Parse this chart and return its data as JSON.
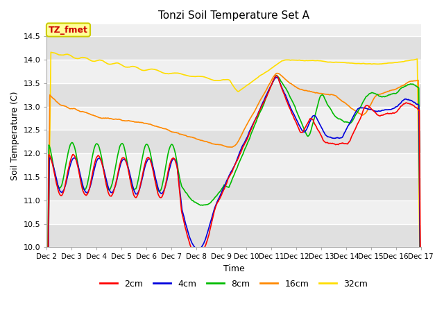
{
  "title": "Tonzi Soil Temperature Set A",
  "xlabel": "Time",
  "ylabel": "Soil Temperature (C)",
  "ylim": [
    10.0,
    14.75
  ],
  "yticks": [
    10.0,
    10.5,
    11.0,
    11.5,
    12.0,
    12.5,
    13.0,
    13.5,
    14.0,
    14.5
  ],
  "x_labels": [
    "Dec 2",
    "Dec 3",
    "Dec 4",
    "Dec 5",
    "Dec 6",
    "Dec 7",
    "Dec 8",
    "Dec 9",
    "Dec 10",
    "Dec 11",
    "Dec 12",
    "Dec 13",
    "Dec 14",
    "Dec 15",
    "Dec 16",
    "Dec 17"
  ],
  "annotation_text": "TZ_fmet",
  "annotation_bg": "#ffff99",
  "annotation_border": "#cccc00",
  "annotation_text_color": "#cc0000",
  "colors": {
    "2cm": "#ff0000",
    "4cm": "#0000dd",
    "8cm": "#00bb00",
    "16cm": "#ff8800",
    "32cm": "#ffdd00"
  },
  "line_width": 1.2,
  "fig_bg": "#ffffff",
  "plot_bg_light": "#f0f0f0",
  "plot_bg_dark": "#e0e0e0",
  "grid_color": "#ffffff"
}
